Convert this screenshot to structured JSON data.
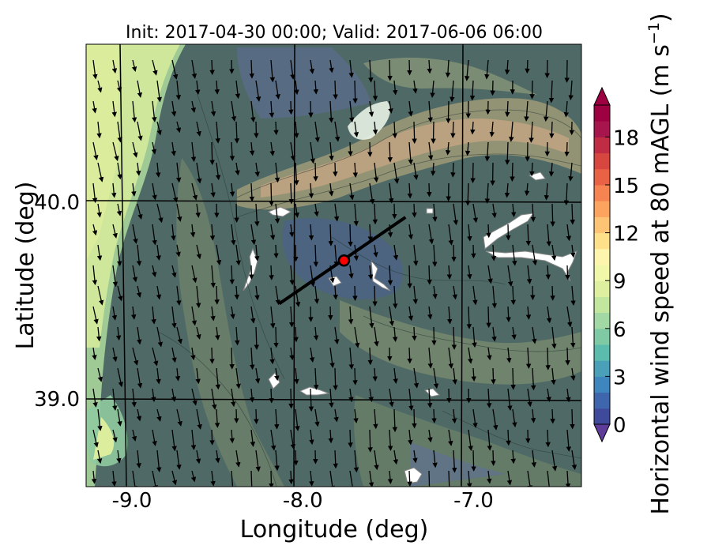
{
  "title": "Init: 2017-04-30 00:00; Valid: 2017-06-06 06:00",
  "map": {
    "xlabel": "Longitude (deg)",
    "ylabel": "Latitude (deg)",
    "xlim": [
      -9.25,
      -6.35
    ],
    "ylim": [
      38.55,
      40.8
    ],
    "xticks": [
      {
        "value": -9.0,
        "label": "-9.0"
      },
      {
        "value": -8.0,
        "label": "-8.0"
      },
      {
        "value": -7.0,
        "label": "-7.0"
      }
    ],
    "yticks": [
      {
        "value": 40.0,
        "label": "40.0"
      },
      {
        "value": 39.0,
        "label": "39.0"
      }
    ],
    "grid": true,
    "site_marker": {
      "lon": -7.74,
      "lat": 39.7,
      "color": "#ff0000"
    },
    "transect": {
      "start": [
        -8.12,
        39.48
      ],
      "end": [
        -7.38,
        39.92
      ],
      "color": "#000000"
    },
    "field": "Horizontal wind speed at 80 mAGL",
    "vectors": "wind direction arrows, predominantly from north (pointing south / south-southeast)"
  },
  "colorbar": {
    "label": "Horizontal wind speed at 80 mAGL (m s",
    "label_superscript": "−1",
    "label_suffix": ")",
    "vmin": 0,
    "vmax": 20,
    "step": 1,
    "extend": "both",
    "colormap": "Spectral_r",
    "ticks": [
      {
        "value": 0,
        "label": "0"
      },
      {
        "value": 3,
        "label": "3"
      },
      {
        "value": 6,
        "label": "6"
      },
      {
        "value": 9,
        "label": "9"
      },
      {
        "value": 12,
        "label": "12"
      },
      {
        "value": 15,
        "label": "15"
      },
      {
        "value": 18,
        "label": "18"
      }
    ],
    "colors": [
      "#3f4a9a",
      "#3f65ac",
      "#3f85be",
      "#4aa0b8",
      "#5bbcae",
      "#7fcaa4",
      "#a1d8a3",
      "#c3e69f",
      "#def0a0",
      "#f1f7a8",
      "#fdf5ae",
      "#fee08b",
      "#fdc475",
      "#fca45f",
      "#f68352",
      "#ea6245",
      "#d8473f",
      "#c12c45",
      "#a6164c",
      "#9e0142"
    ],
    "under_color": "#5e3c99",
    "over_color": "#9e0142"
  }
}
